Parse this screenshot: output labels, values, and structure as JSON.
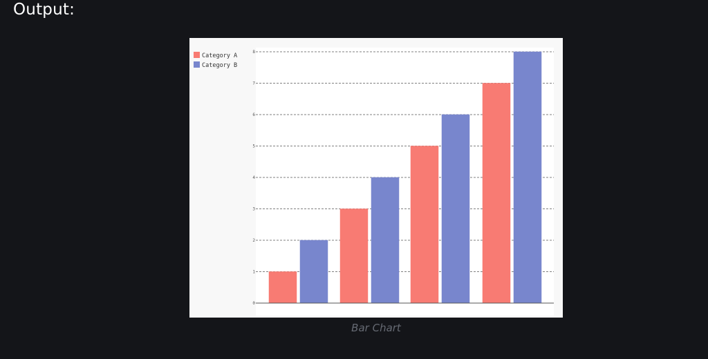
{
  "page": {
    "heading": "Output:",
    "caption": "Bar Chart"
  },
  "chart_data": {
    "type": "bar",
    "categories": [
      "",
      "",
      "",
      ""
    ],
    "series": [
      {
        "name": "Category A",
        "values": [
          1,
          3,
          5,
          7
        ],
        "color": "#f87b73"
      },
      {
        "name": "Category B",
        "values": [
          2,
          4,
          6,
          8
        ],
        "color": "#7886cd"
      }
    ],
    "title": "",
    "xlabel": "",
    "ylabel": "",
    "ylim": [
      0,
      8
    ],
    "yticks": [
      0,
      1,
      2,
      3,
      4,
      5,
      6,
      7,
      8
    ],
    "grid": true,
    "grid_style": "dashed",
    "legend_position": "top-left"
  },
  "colors": {
    "page_background": "#141519",
    "card_background": "#f8f8f8",
    "plot_background": "#ffffff",
    "gridline": "#555555",
    "axis": "#555555"
  }
}
